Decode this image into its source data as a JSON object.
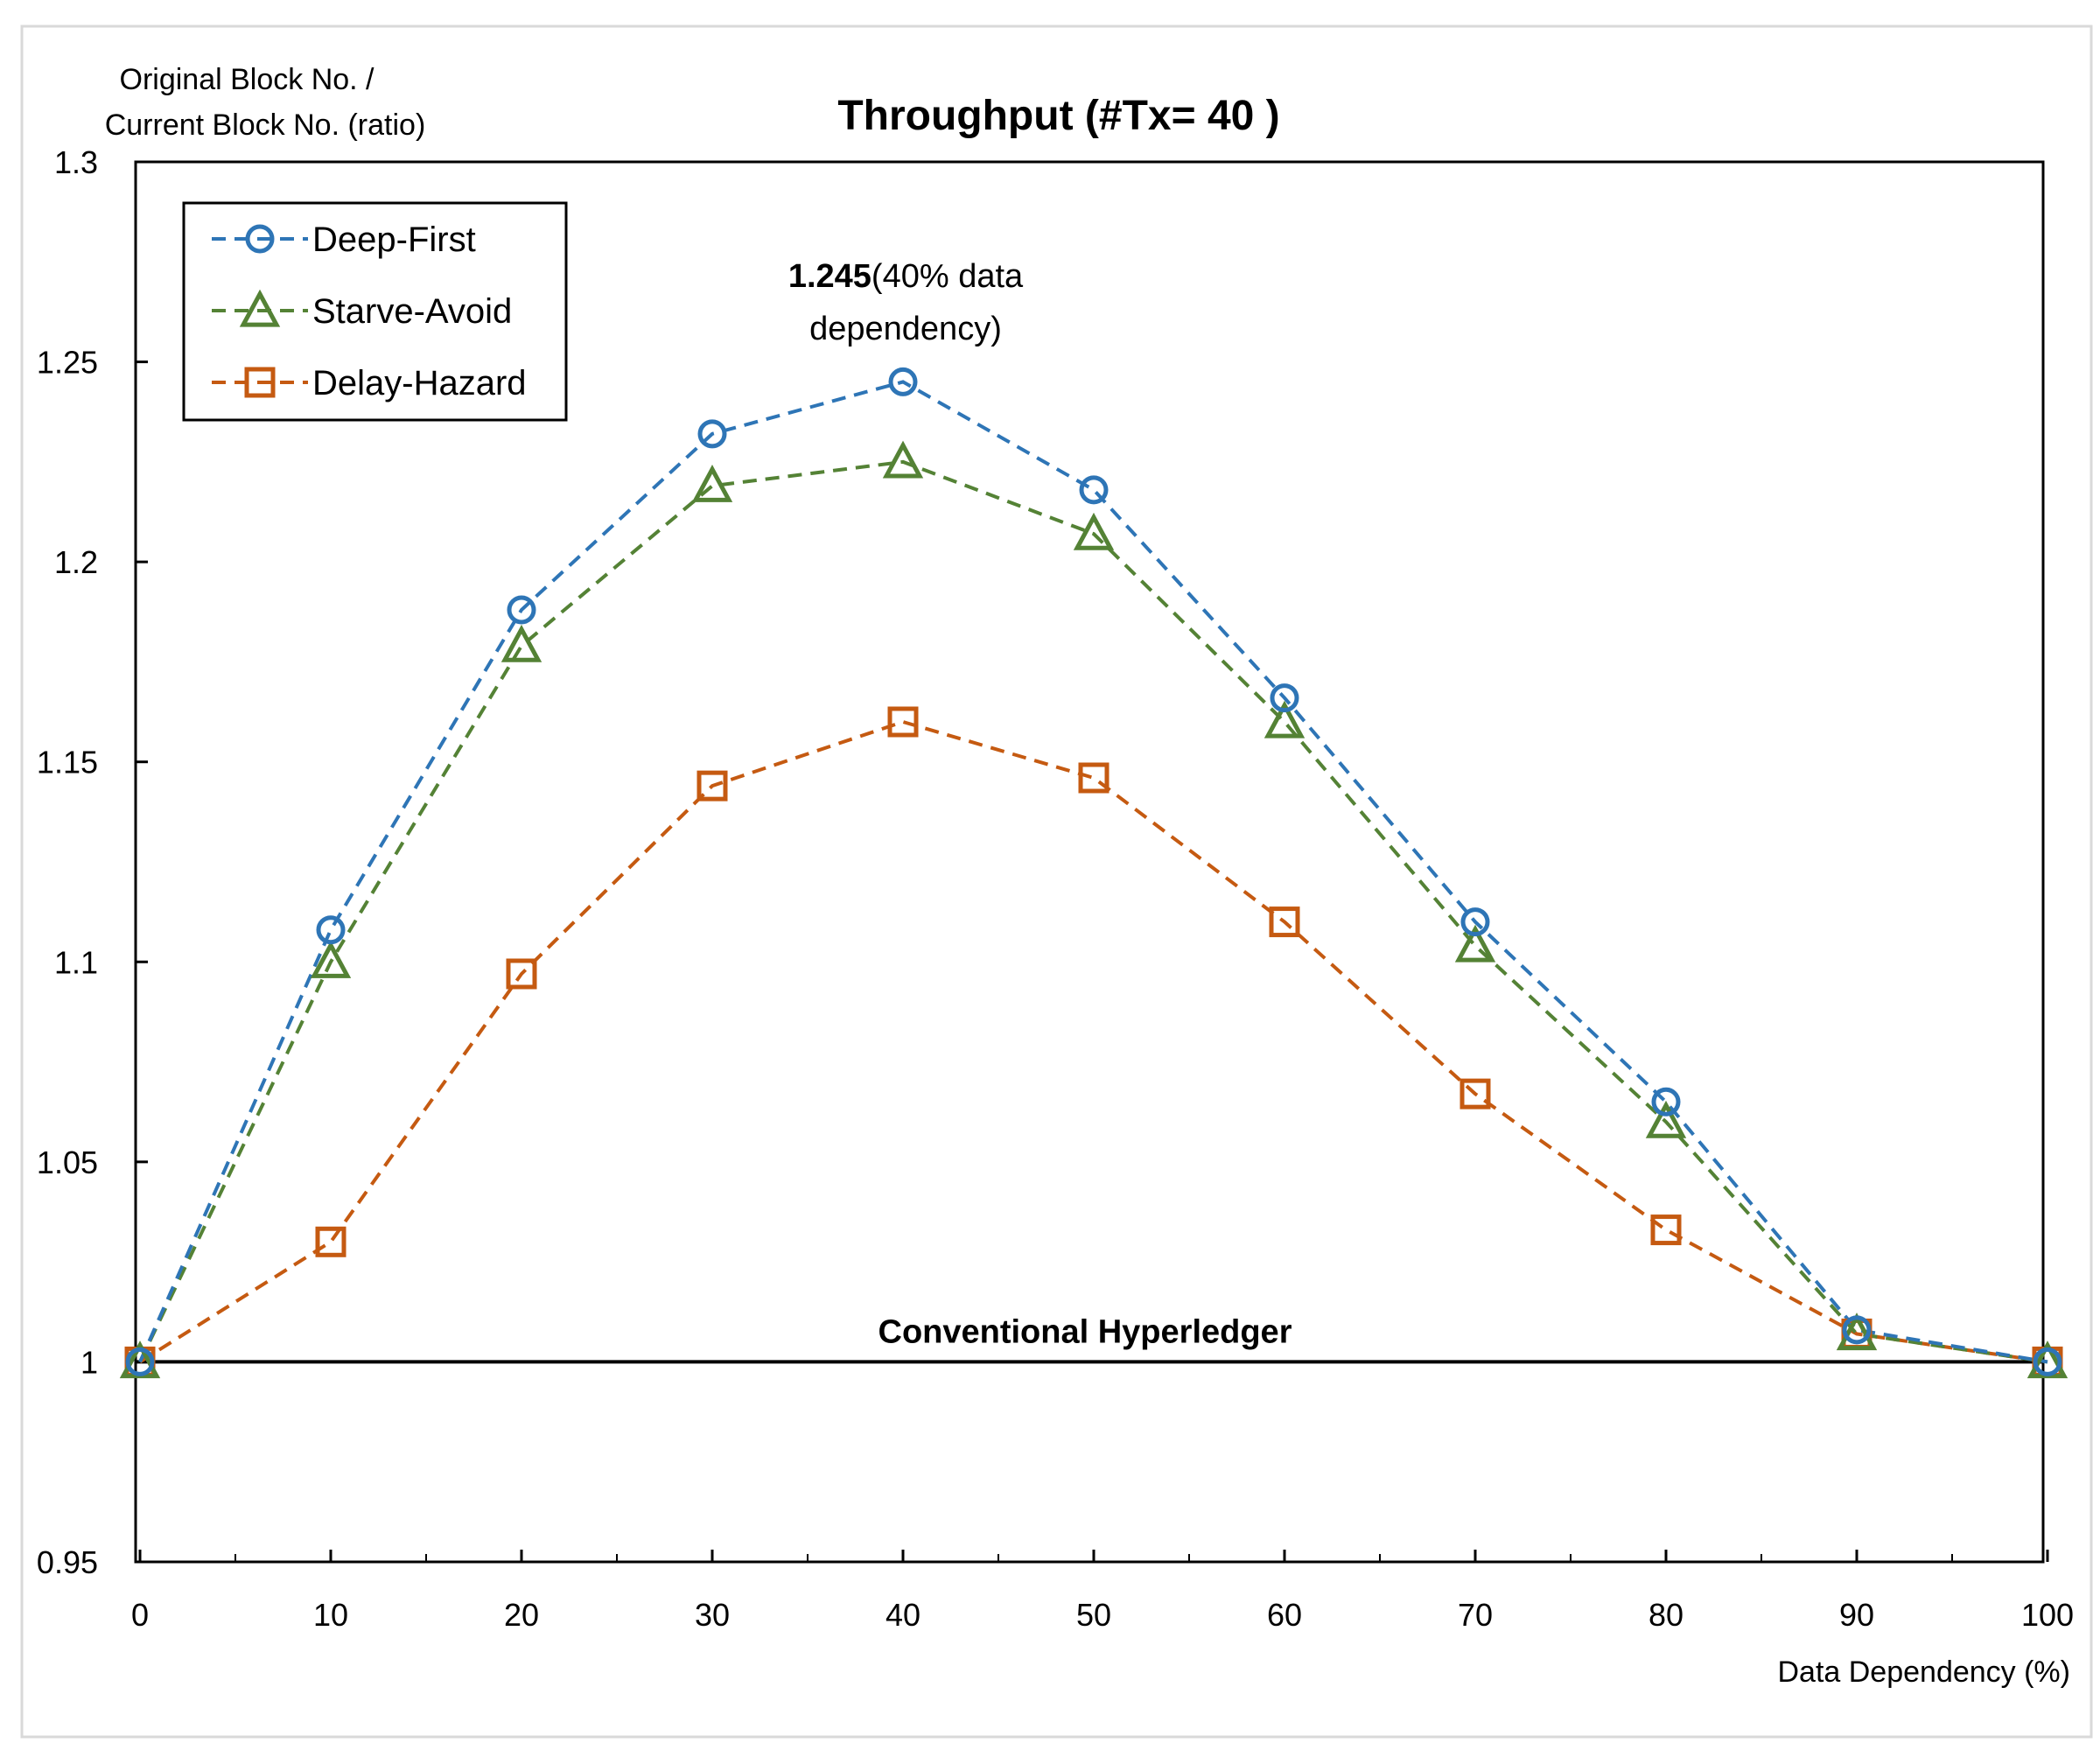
{
  "chart_data": {
    "type": "line",
    "title": "Throughput (#Tx= 40 )",
    "xlabel": "Data Dependency (%)",
    "ylabel_lines": [
      "Original Block No. /",
      "Current Block No. (ratio)"
    ],
    "x": [
      0,
      10,
      20,
      30,
      40,
      50,
      60,
      70,
      80,
      90,
      100
    ],
    "xlim": [
      0,
      100
    ],
    "ylim": [
      0.95,
      1.3
    ],
    "x_ticks": [
      "0",
      "10",
      "20",
      "30",
      "40",
      "50",
      "60",
      "70",
      "80",
      "90",
      "100"
    ],
    "y_ticks": [
      "0.95",
      "1",
      "1.05",
      "1.1",
      "1.15",
      "1.2",
      "1.25",
      "1.3"
    ],
    "grid": false,
    "legend_position": "top-left",
    "series": [
      {
        "name": "Deep-First",
        "color": "#2e75b6",
        "marker": "circle",
        "values": [
          1.0,
          1.108,
          1.188,
          1.232,
          1.245,
          1.218,
          1.166,
          1.11,
          1.065,
          1.008,
          1.0
        ]
      },
      {
        "name": "Starve-Avoid",
        "color": "#548235",
        "marker": "triangle",
        "values": [
          1.0,
          1.1,
          1.179,
          1.219,
          1.225,
          1.207,
          1.16,
          1.104,
          1.06,
          1.007,
          1.0
        ]
      },
      {
        "name": "Delay-Hazard",
        "color": "#c55a11",
        "marker": "square",
        "values": [
          1.0,
          1.03,
          1.097,
          1.144,
          1.16,
          1.146,
          1.11,
          1.067,
          1.033,
          1.007,
          1.0
        ]
      }
    ],
    "baseline": {
      "y": 1.0,
      "label": "Conventional Hyperledger",
      "color": "#000000"
    },
    "annotation": {
      "value_text": "1.245",
      "line1_rest": "(40% data",
      "line2": "dependency)"
    }
  }
}
